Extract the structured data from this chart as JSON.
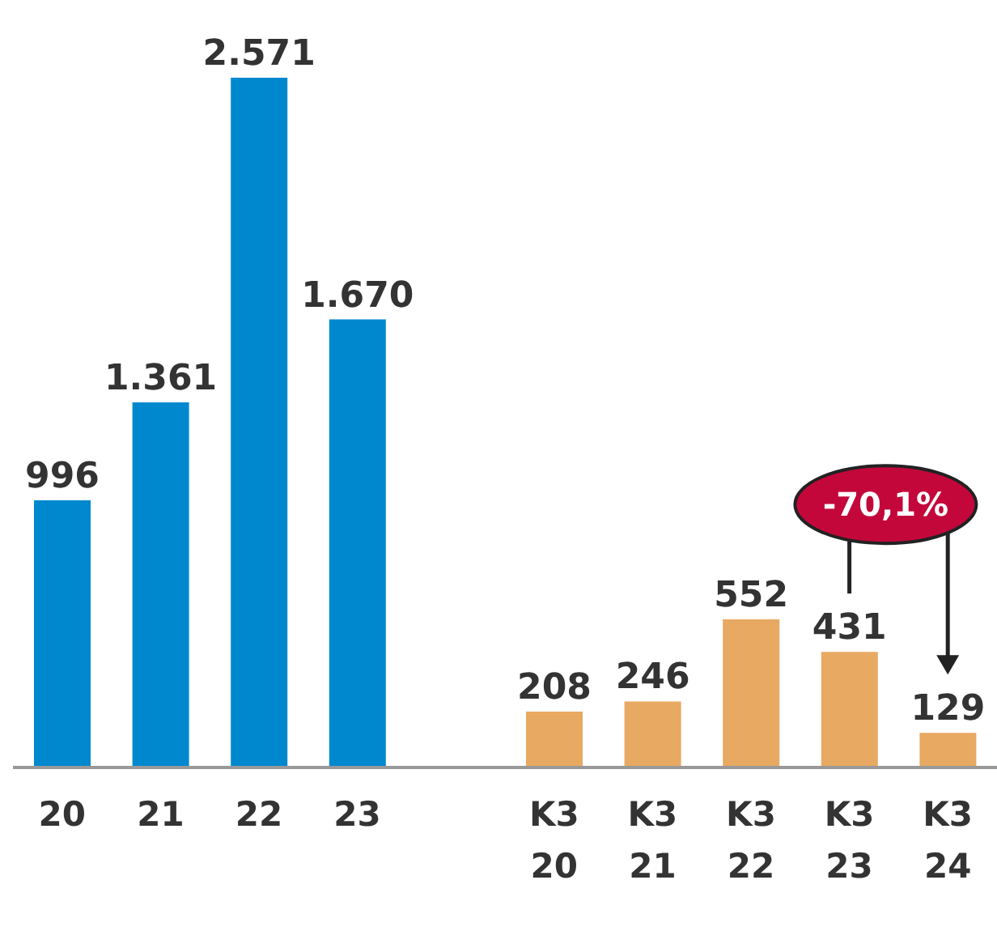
{
  "chart_data": {
    "type": "bar",
    "categories": [
      "20",
      "21",
      "22",
      "23",
      null,
      "K3 20",
      "K3 21",
      "K3 22",
      "K3 23",
      "K3 24"
    ],
    "values": [
      996,
      1361,
      2571,
      1670,
      null,
      208,
      246,
      552,
      431,
      129
    ],
    "value_labels": [
      "996",
      "1.361",
      "2.571",
      "1.670",
      null,
      "208",
      "246",
      "552",
      "431",
      "129"
    ],
    "colors": [
      "#0088cf",
      "#0088cf",
      "#0088cf",
      "#0088cf",
      null,
      "#e8a962",
      "#e8a962",
      "#e8a962",
      "#e8a962",
      "#e8a962"
    ],
    "annotations": [
      "-70,1%"
    ]
  }
}
